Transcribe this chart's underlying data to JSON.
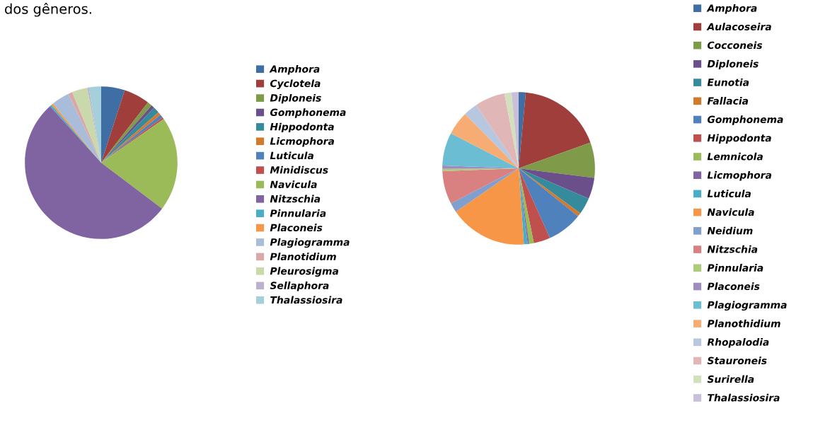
{
  "chart_data": [
    {
      "type": "pie",
      "annotations": [
        "dos gêneros."
      ],
      "legend": "right",
      "categories": [
        "Amphora",
        "Cyclotela",
        "Diploneis",
        "Gomphonema",
        "Hippodonta",
        "Licmophora",
        "Luticula",
        "Minidiscus",
        "Navicula",
        "Nitzschia",
        "Pinnularia",
        "Placoneis",
        "Plagiogramma",
        "Planotidium",
        "Pleurosigma",
        "Sellaphora",
        "Thalassiosira"
      ],
      "values": [
        5,
        5.5,
        1,
        0.7,
        1.3,
        0.7,
        0.7,
        0.4,
        20,
        53,
        0.4,
        0.4,
        3.8,
        0.9,
        3.3,
        0.3,
        2.6
      ],
      "colors": [
        "#3f6ea5",
        "#a03e3b",
        "#7f9a48",
        "#6a4f8b",
        "#358a9c",
        "#d17a2e",
        "#4f81bd",
        "#c0504d",
        "#9bbb59",
        "#8064a2",
        "#4bacc6",
        "#f79646",
        "#a9bcd9",
        "#d9a9a8",
        "#c9d9ab",
        "#bcb1cd",
        "#a6cfdc"
      ]
    },
    {
      "type": "pie",
      "legend": "right",
      "categories": [
        "Amphora",
        "Aulacoseira",
        "Cocconeis",
        "Diploneis",
        "Eunotia",
        "Fallacia",
        "Gomphonema",
        "Hippodonta",
        "Lemnicola",
        "Licmophora",
        "Luticula",
        "Navicula",
        "Neidium",
        "Nitzschia",
        "Pinnularia",
        "Placoneis",
        "Plagiogramma",
        "Planothidium",
        "Rhopalodia",
        "Stauroneis",
        "Surirella",
        "Thalassiosira"
      ],
      "values": [
        1.5,
        18,
        7.5,
        4.5,
        3.5,
        0.8,
        7.5,
        3.5,
        1,
        0.3,
        0.8,
        16.5,
        2,
        7,
        0.5,
        0.7,
        7,
        5,
        3,
        6.4,
        1.5,
        1.5
      ],
      "colors": [
        "#3f6ea5",
        "#a03e3b",
        "#7f9a48",
        "#6a4f8b",
        "#358a9c",
        "#d17a2e",
        "#4f81bd",
        "#c0504d",
        "#9bbb59",
        "#8064a2",
        "#4bacc6",
        "#f79646",
        "#7f9fcf",
        "#d98080",
        "#aecb7a",
        "#9f8cbf",
        "#6bbdd3",
        "#f7ac74",
        "#b8c7e0",
        "#e0b7b6",
        "#d3e0bd",
        "#c9bfd8"
      ]
    }
  ]
}
